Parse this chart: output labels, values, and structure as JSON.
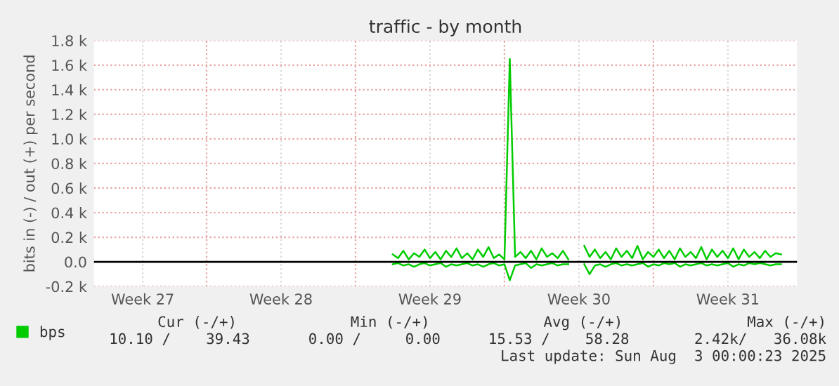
{
  "chart_data": {
    "type": "line",
    "title": "traffic - by month",
    "ylabel": "bits in (-) / out (+) per second",
    "x": [
      "2025-07-15T18:00",
      "2025-07-16T00:00",
      "2025-07-16T06:00",
      "2025-07-16T12:00",
      "2025-07-16T18:00",
      "2025-07-17T00:00",
      "2025-07-17T06:00",
      "2025-07-17T12:00",
      "2025-07-17T18:00",
      "2025-07-18T00:00",
      "2025-07-18T06:00",
      "2025-07-18T12:00",
      "2025-07-18T18:00",
      "2025-07-19T00:00",
      "2025-07-19T06:00",
      "2025-07-19T12:00",
      "2025-07-19T18:00",
      "2025-07-20T00:00",
      "2025-07-20T06:00",
      "2025-07-20T12:00",
      "2025-07-20T18:00",
      "2025-07-21T00:00",
      "2025-07-21T06:00",
      "2025-07-21T12:00",
      "2025-07-21T18:00",
      "2025-07-22T00:00",
      "2025-07-22T06:00",
      "2025-07-22T12:00",
      "2025-07-22T18:00",
      "2025-07-23T00:00",
      "2025-07-23T06:00",
      "2025-07-23T12:00",
      "2025-07-23T18:00",
      "2025-07-24T00:00",
      "2025-07-24T06:00",
      "2025-07-24T12:00",
      "2025-07-24T18:00",
      "2025-07-25T00:00",
      "2025-07-25T06:00",
      "2025-07-25T12:00",
      "2025-07-25T18:00",
      "2025-07-26T00:00",
      "2025-07-26T06:00",
      "2025-07-26T12:00",
      "2025-07-26T18:00",
      "2025-07-27T00:00",
      "2025-07-27T06:00",
      "2025-07-27T12:00",
      "2025-07-27T18:00",
      "2025-07-28T00:00",
      "2025-07-28T06:00",
      "2025-07-28T12:00",
      "2025-07-28T18:00",
      "2025-07-29T00:00",
      "2025-07-29T06:00",
      "2025-07-29T12:00",
      "2025-07-29T18:00",
      "2025-07-30T00:00",
      "2025-07-30T06:00",
      "2025-07-30T12:00",
      "2025-07-30T18:00",
      "2025-07-31T00:00",
      "2025-07-31T06:00",
      "2025-07-31T12:00",
      "2025-07-31T18:00",
      "2025-08-01T00:00",
      "2025-08-01T06:00",
      "2025-08-01T12:00",
      "2025-08-01T18:00",
      "2025-08-02T00:00",
      "2025-08-02T06:00",
      "2025-08-02T12:00",
      "2025-08-02T18:00",
      "2025-08-03T00:00"
    ],
    "series": [
      {
        "name": "bps",
        "color": "#00cc00",
        "values": [
          60,
          30,
          90,
          20,
          70,
          40,
          100,
          30,
          80,
          20,
          90,
          40,
          110,
          30,
          70,
          20,
          100,
          40,
          120,
          30,
          60,
          20,
          1650,
          40,
          80,
          30,
          90,
          20,
          110,
          40,
          70,
          30,
          90,
          20,
          null,
          null,
          130,
          40,
          100,
          30,
          80,
          20,
          110,
          40,
          90,
          30,
          130,
          20,
          80,
          40,
          100,
          30,
          90,
          20,
          110,
          40,
          80,
          30,
          120,
          20,
          100,
          40,
          90,
          30,
          110,
          20,
          100,
          40,
          80,
          30,
          90,
          40,
          70,
          60
        ]
      },
      {
        "color": "#00cc00",
        "values": [
          -20,
          -10,
          -30,
          -20,
          -40,
          -20,
          -10,
          -30,
          -20,
          -10,
          -40,
          -20,
          -30,
          -20,
          -10,
          -30,
          -20,
          -40,
          -20,
          -10,
          -30,
          -20,
          -150,
          -30,
          -20,
          -10,
          -50,
          -20,
          -30,
          -20,
          -10,
          -30,
          -20,
          -20,
          null,
          null,
          -20,
          -100,
          -30,
          -20,
          -40,
          -20,
          -10,
          -30,
          -20,
          -30,
          -20,
          -10,
          -40,
          -20,
          -30,
          -10,
          -20,
          -10,
          -40,
          -20,
          -30,
          -20,
          -10,
          -30,
          -20,
          -30,
          -20,
          -10,
          -40,
          -20,
          -30,
          -10,
          -20,
          -10,
          -20,
          -30,
          -20,
          -20
        ]
      }
    ],
    "xlim": [
      "2025-07-01T17:00",
      "2025-08-03T18:00"
    ],
    "xticks": [
      {
        "value": "2025-07-04T00:00",
        "label": "Week 27"
      },
      {
        "value": "2025-07-07T00:00",
        "label": null
      },
      {
        "value": "2025-07-10T12:00",
        "label": "Week 28"
      },
      {
        "value": "2025-07-14T00:00",
        "label": null
      },
      {
        "value": "2025-07-17T12:00",
        "label": "Week 29"
      },
      {
        "value": "2025-07-21T00:00",
        "label": null
      },
      {
        "value": "2025-07-24T12:00",
        "label": "Week 30"
      },
      {
        "value": "2025-07-28T00:00",
        "label": null
      },
      {
        "value": "2025-07-31T12:00",
        "label": "Week 31"
      }
    ],
    "ylim": [
      -200,
      1800
    ],
    "yticks": [
      {
        "value": -200,
        "label": "-0.2 k"
      },
      {
        "value": 0,
        "label": "0.0"
      },
      {
        "value": 200,
        "label": "0.2 k"
      },
      {
        "value": 400,
        "label": "0.4 k"
      },
      {
        "value": 600,
        "label": "0.6 k"
      },
      {
        "value": 800,
        "label": "0.8 k"
      },
      {
        "value": 1000,
        "label": "1.0 k"
      },
      {
        "value": 1200,
        "label": "1.2 k"
      },
      {
        "value": 1400,
        "label": "1.4 k"
      },
      {
        "value": 1600,
        "label": "1.6 k"
      },
      {
        "value": 1800,
        "label": "1.8 k"
      }
    ],
    "ref_lines": [
      {
        "axis": "y",
        "value": 0,
        "color": "#000000"
      }
    ],
    "grid": true,
    "legend": "bottom left",
    "line_style": "solid",
    "marker": "none",
    "annotations": [
      "Cur (-/+)",
      "Min (-/+)",
      "Avg (-/+)",
      "Max (-/+)",
      "10.10 /    39.43",
      "0.00 /     0.00",
      "15.53 /    58.28",
      "2.42k/   36.08k",
      "Last update: Sun Aug  3 00:00:23 2025"
    ]
  }
}
